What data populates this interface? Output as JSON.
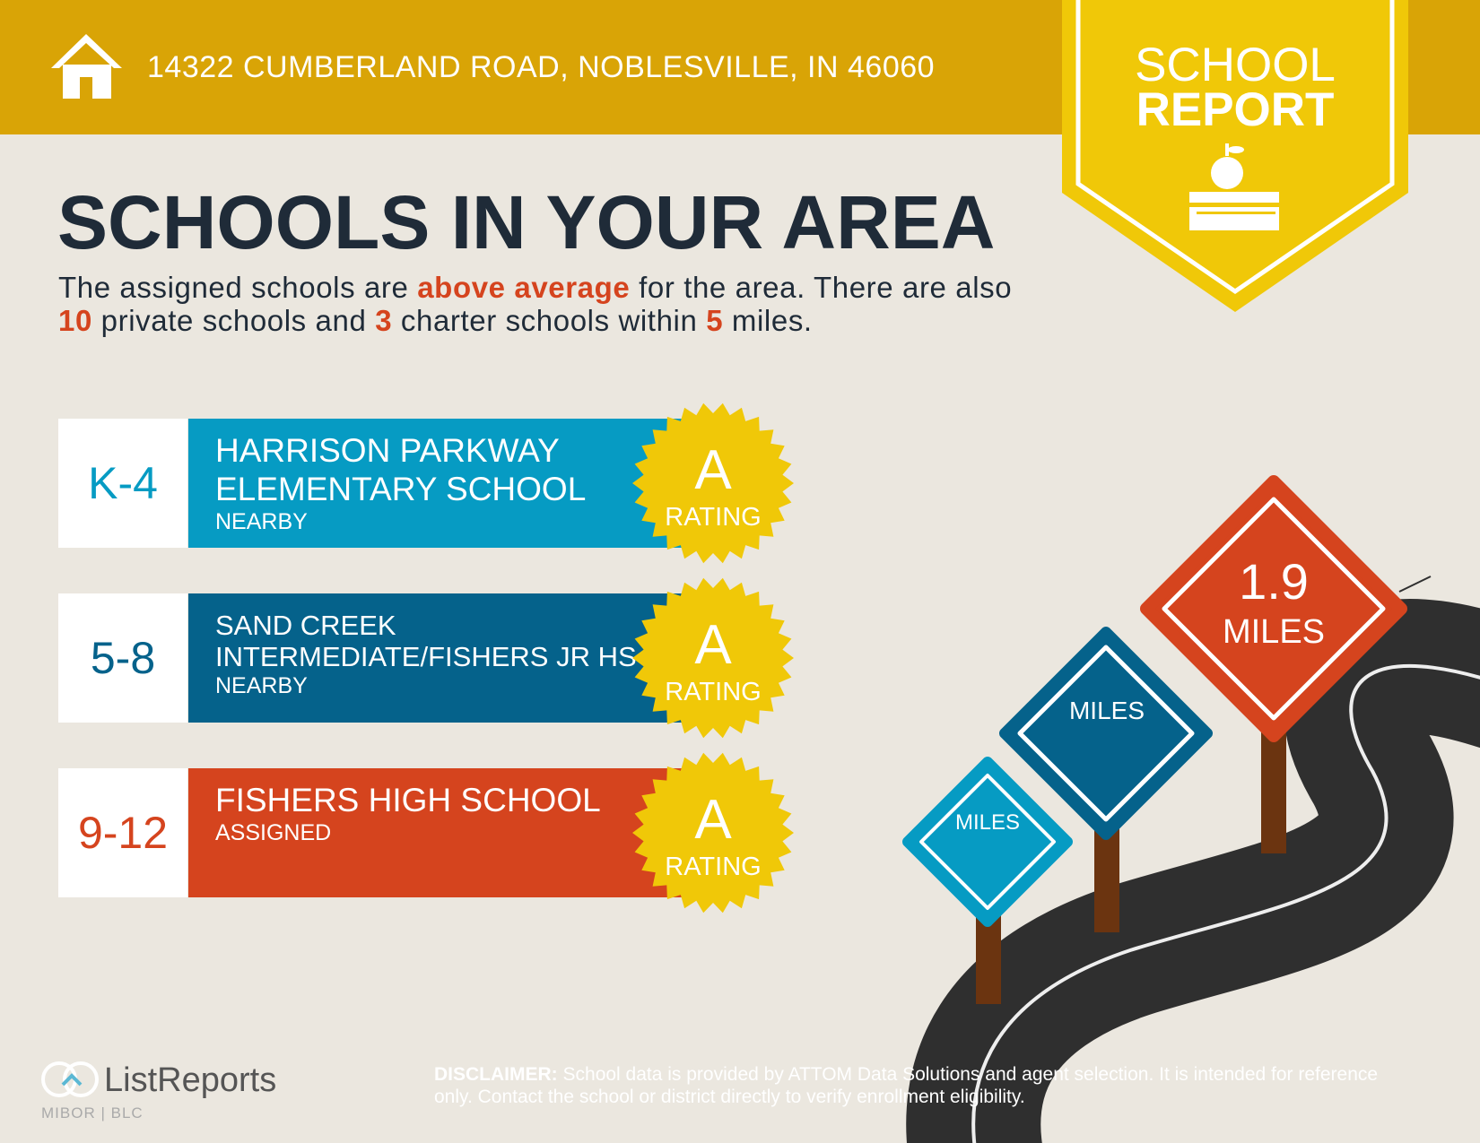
{
  "header": {
    "address": "14322 CUMBERLAND ROAD, NOBLESVILLE, IN 46060"
  },
  "badge": {
    "line1": "SCHOOL",
    "line2": "REPORT"
  },
  "heading": "SCHOOLS IN YOUR AREA",
  "intro": [
    "The assigned schools are ",
    "above average",
    " for the area. There are also ",
    "10",
    " private schools and ",
    "3",
    " charter schools within ",
    "5",
    " miles."
  ],
  "schools": [
    {
      "grades": "K-4",
      "name": [
        "HARRISON PARKWAY",
        "ELEMENTARY SCHOOL"
      ],
      "status": "NEARBY",
      "rating": "A",
      "rating_label": "RATING"
    },
    {
      "grades": "5-8",
      "name": [
        "SAND CREEK",
        "INTERMEDIATE/FISHERS JR HS"
      ],
      "status": "NEARBY",
      "rating": "A",
      "rating_label": "RATING"
    },
    {
      "grades": "9-12",
      "name": [
        "FISHERS HIGH SCHOOL"
      ],
      "status": "ASSIGNED",
      "rating": "A",
      "rating_label": "RATING"
    }
  ],
  "signs": [
    {
      "value": "1.9",
      "unit": "MILES"
    },
    {
      "unit": "MILES"
    },
    {
      "unit": "MILES"
    }
  ],
  "logo": {
    "name": "ListReports",
    "left": "MIBOR",
    "right": "BLC"
  },
  "disclaimer": {
    "label": "DISCLAIMER:",
    "text": " School data is provided by ATTOM Data Solutions and agent selection. It is intended for reference only. Contact the school or district directly to verify enrollment eligibility."
  }
}
